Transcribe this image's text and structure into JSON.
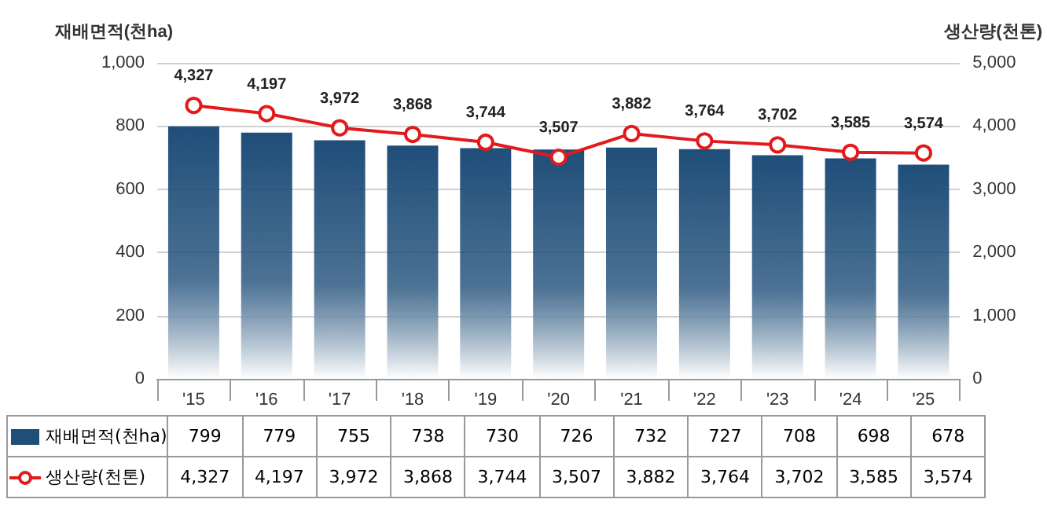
{
  "chart_data": {
    "type": "bar",
    "ylabel": "재배면적(천ha)",
    "y2label": "생산량(천톤)",
    "categories": [
      "'15",
      "'16",
      "'17",
      "'18",
      "'19",
      "'20",
      "'21",
      "'22",
      "'23",
      "'24",
      "'25"
    ],
    "series": [
      {
        "name": "재배면적(천ha)",
        "color": "#1f4e79",
        "values": [
          799,
          779,
          755,
          738,
          730,
          726,
          732,
          727,
          708,
          698,
          678
        ],
        "value_labels": [
          "799",
          "779",
          "755",
          "738",
          "730",
          "726",
          "732",
          "727",
          "708",
          "698",
          "678"
        ]
      },
      {
        "name": "생산량(천톤)",
        "type": "line",
        "axis": "y2",
        "color": "#e31a1c",
        "marker": "circle",
        "values": [
          4327,
          4197,
          3972,
          3868,
          3744,
          3507,
          3882,
          3764,
          3702,
          3585,
          3574
        ],
        "value_labels": [
          "4,327",
          "4,197",
          "3,972",
          "3,868",
          "3,744",
          "3,507",
          "3,882",
          "3,764",
          "3,702",
          "3,585",
          "3,574"
        ]
      }
    ],
    "ylim": [
      0,
      1000
    ],
    "yticks": [
      0,
      200,
      400,
      600,
      800,
      {
        "value": 1000,
        "label": "1,000"
      }
    ],
    "y2lim": [
      0,
      5000
    ],
    "y2ticks": [
      0,
      {
        "value": 1000,
        "label": "1,000"
      },
      {
        "value": 2000,
        "label": "2,000"
      },
      {
        "value": 3000,
        "label": "3,000"
      },
      {
        "value": 4000,
        "label": "4,000"
      },
      {
        "value": 5000,
        "label": "5,000"
      }
    ],
    "grid": "y",
    "legend": "bottom"
  }
}
